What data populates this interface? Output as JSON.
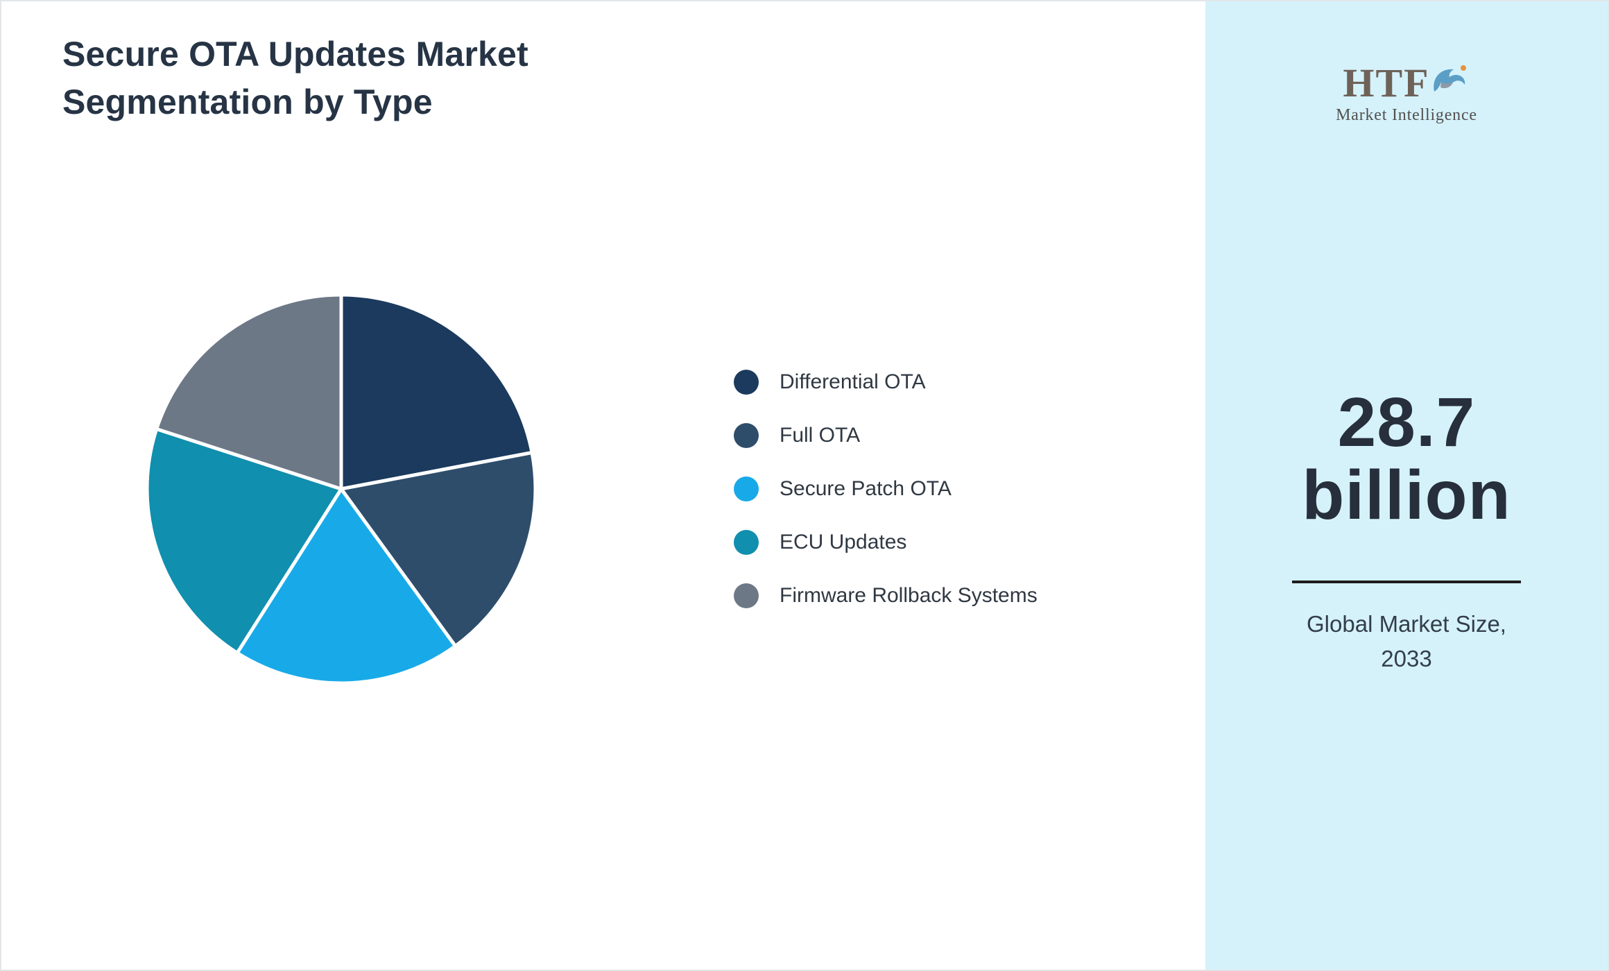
{
  "title": {
    "line1": "Secure OTA Updates Market",
    "line2": "Segmentation by Type"
  },
  "logo": {
    "brand": "HTF",
    "subtitle": "Market Intelligence"
  },
  "sidebar": {
    "background_color": "#d5f2fb",
    "metric_value_line1": "28.7",
    "metric_value_line2": "billion",
    "caption_line1": "Global Market Size,",
    "caption_line2": "2033"
  },
  "chart_data": {
    "type": "pie",
    "title": "Secure OTA Updates Market Segmentation by Type",
    "unit": "percent",
    "start_angle_deg": -90,
    "direction": "clockwise",
    "legend_position": "right",
    "segments": [
      {
        "label": "Differential OTA",
        "value": 22,
        "color": "#1b3a5e"
      },
      {
        "label": "Full OTA",
        "value": 18,
        "color": "#2e4d6b"
      },
      {
        "label": "Secure Patch OTA",
        "value": 19,
        "color": "#18aae8"
      },
      {
        "label": "ECU Updates",
        "value": 21,
        "color": "#108fae"
      },
      {
        "label": "Firmware Rollback Systems",
        "value": 20,
        "color": "#6c7886"
      }
    ]
  }
}
